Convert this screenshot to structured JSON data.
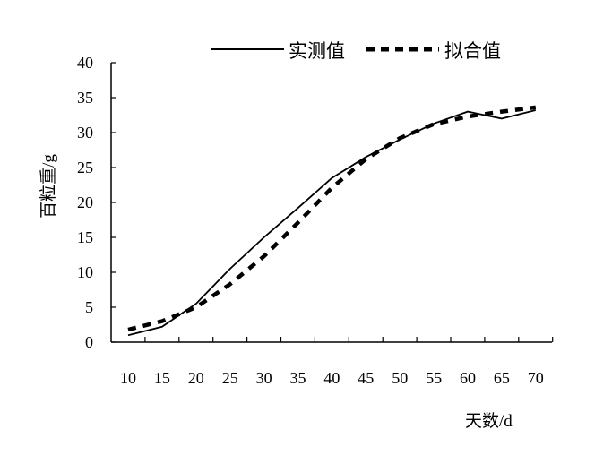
{
  "chart_data": {
    "type": "line",
    "xlabel": "天数/d",
    "ylabel": "百粒重/g",
    "xlim": [
      10,
      70
    ],
    "ylim": [
      0,
      40
    ],
    "x_ticks": [
      "10",
      "15",
      "20",
      "25",
      "30",
      "35",
      "40",
      "45",
      "50",
      "55",
      "60",
      "65",
      "70"
    ],
    "y_ticks": [
      "0",
      "5",
      "10",
      "15",
      "20",
      "25",
      "30",
      "35",
      "40"
    ],
    "legend_position": "top",
    "series": [
      {
        "name": "实测值",
        "style": "solid",
        "x": [
          10,
          15,
          20,
          25,
          30,
          35,
          40,
          45,
          50,
          55,
          60,
          62,
          65,
          70
        ],
        "y": [
          1.0,
          2.2,
          5.5,
          10.5,
          15.0,
          19.2,
          23.5,
          26.5,
          29.0,
          31.3,
          33.0,
          32.6,
          32.0,
          33.2
        ]
      },
      {
        "name": "拟合值",
        "style": "dashed",
        "x": [
          10,
          15,
          20,
          25,
          30,
          35,
          40,
          45,
          50,
          55,
          60,
          65,
          70
        ],
        "y": [
          1.8,
          3.0,
          5.0,
          8.3,
          12.3,
          17.1,
          22.1,
          26.2,
          29.2,
          31.2,
          32.3,
          33.0,
          33.6
        ]
      }
    ]
  }
}
